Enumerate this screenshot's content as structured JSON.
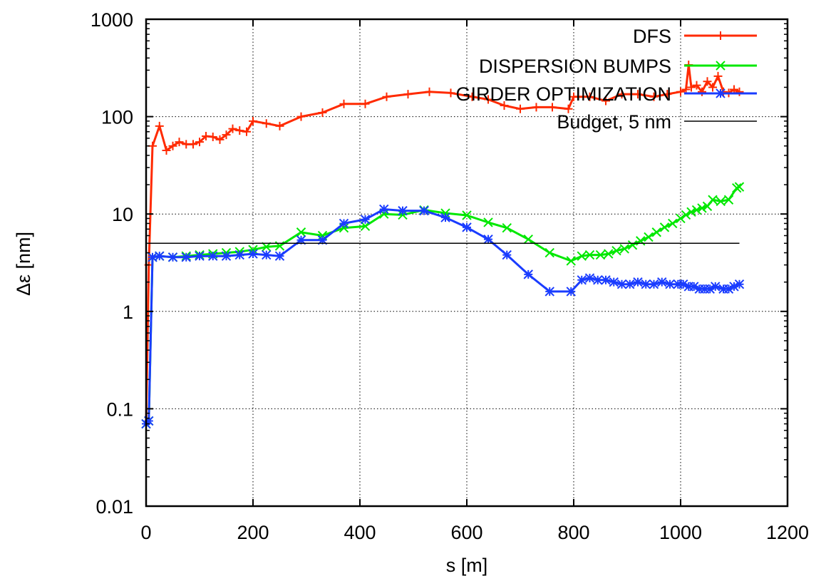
{
  "chart_data": {
    "type": "line",
    "xlabel": "s [m]",
    "ylabel": "Δε [nm]",
    "x_scale": "linear",
    "y_scale": "log",
    "xlim": [
      0,
      1200
    ],
    "ylim": [
      0.01,
      1000
    ],
    "x_ticks": [
      "0",
      "200",
      "400",
      "600",
      "800",
      "1000",
      "1200"
    ],
    "x_tick_values": [
      0,
      200,
      400,
      600,
      800,
      1000,
      1200
    ],
    "y_ticks": [
      "0.01",
      "0.1",
      "1",
      "10",
      "100",
      "1000"
    ],
    "y_tick_values": [
      0.01,
      0.1,
      1,
      10,
      100,
      1000
    ],
    "grid": true,
    "legend_position": "top-right",
    "series": [
      {
        "name": "DFS",
        "color": "#ff2a00",
        "marker": "plus",
        "x": [
          0,
          5,
          12,
          25,
          38,
          50,
          62,
          75,
          88,
          100,
          112,
          125,
          138,
          150,
          162,
          175,
          188,
          200,
          225,
          250,
          290,
          330,
          370,
          410,
          450,
          490,
          530,
          570,
          610,
          640,
          670,
          700,
          730,
          760,
          790,
          800,
          830,
          860,
          890,
          920,
          950,
          975,
          1000,
          1010,
          1015,
          1020,
          1030,
          1040,
          1050,
          1060,
          1070,
          1080,
          1090,
          1100,
          1110
        ],
        "y": [
          0.07,
          3,
          50,
          80,
          45,
          50,
          55,
          52,
          52,
          55,
          63,
          62,
          58,
          65,
          75,
          72,
          70,
          90,
          85,
          80,
          100,
          110,
          135,
          135,
          160,
          170,
          180,
          175,
          160,
          150,
          130,
          120,
          125,
          125,
          120,
          160,
          160,
          145,
          170,
          170,
          160,
          170,
          180,
          190,
          340,
          200,
          210,
          180,
          230,
          200,
          260,
          180,
          175,
          190,
          180
        ]
      },
      {
        "name": "DISPERSION BUMPS",
        "color": "#00e800",
        "marker": "x",
        "x": [
          0,
          5,
          12,
          25,
          50,
          75,
          100,
          125,
          150,
          175,
          200,
          225,
          250,
          290,
          330,
          370,
          410,
          445,
          480,
          520,
          560,
          600,
          640,
          675,
          715,
          755,
          795,
          815,
          830,
          850,
          865,
          880,
          895,
          910,
          925,
          940,
          955,
          970,
          985,
          1000,
          1010,
          1020,
          1030,
          1040,
          1050,
          1060,
          1075,
          1090,
          1105,
          1110
        ],
        "y": [
          0.07,
          0.075,
          3.6,
          3.7,
          3.6,
          3.7,
          3.8,
          3.9,
          4.0,
          4.1,
          4.3,
          4.6,
          4.7,
          6.5,
          6.0,
          7.2,
          7.5,
          10.0,
          9.8,
          11.0,
          10.2,
          9.7,
          8.2,
          7.2,
          5.5,
          4.0,
          3.3,
          3.7,
          3.8,
          3.8,
          3.9,
          4.2,
          4.4,
          4.8,
          5.3,
          5.8,
          6.5,
          7.3,
          8.0,
          9.0,
          9.8,
          10.5,
          11.0,
          11.5,
          12.0,
          14.0,
          13.5,
          14.0,
          18.5,
          19.0
        ]
      },
      {
        "name": "GIRDER OPTIMIZATION",
        "color": "#1a3cff",
        "marker": "star",
        "x": [
          0,
          5,
          12,
          25,
          50,
          75,
          100,
          125,
          150,
          175,
          200,
          225,
          250,
          290,
          330,
          370,
          410,
          445,
          480,
          520,
          560,
          600,
          640,
          675,
          715,
          755,
          795,
          815,
          830,
          845,
          860,
          875,
          890,
          905,
          920,
          935,
          950,
          965,
          980,
          995,
          1005,
          1015,
          1025,
          1035,
          1045,
          1055,
          1065,
          1080,
          1090,
          1100,
          1110
        ],
        "y": [
          0.07,
          0.075,
          3.6,
          3.7,
          3.6,
          3.6,
          3.7,
          3.7,
          3.7,
          3.8,
          3.9,
          3.8,
          3.7,
          5.4,
          5.4,
          8.0,
          8.8,
          11.2,
          10.8,
          10.8,
          9.2,
          7.3,
          5.5,
          3.8,
          2.4,
          1.6,
          1.6,
          2.1,
          2.2,
          2.1,
          2.1,
          2.0,
          1.9,
          1.9,
          2.0,
          1.9,
          1.9,
          2.0,
          1.9,
          1.9,
          1.9,
          1.8,
          1.8,
          1.7,
          1.7,
          1.7,
          1.8,
          1.7,
          1.7,
          1.8,
          1.9
        ]
      },
      {
        "name": "Budget, 5 nm",
        "color": "#000000",
        "marker": "none",
        "x": [
          0,
          1110
        ],
        "y": [
          5,
          5
        ]
      }
    ]
  }
}
